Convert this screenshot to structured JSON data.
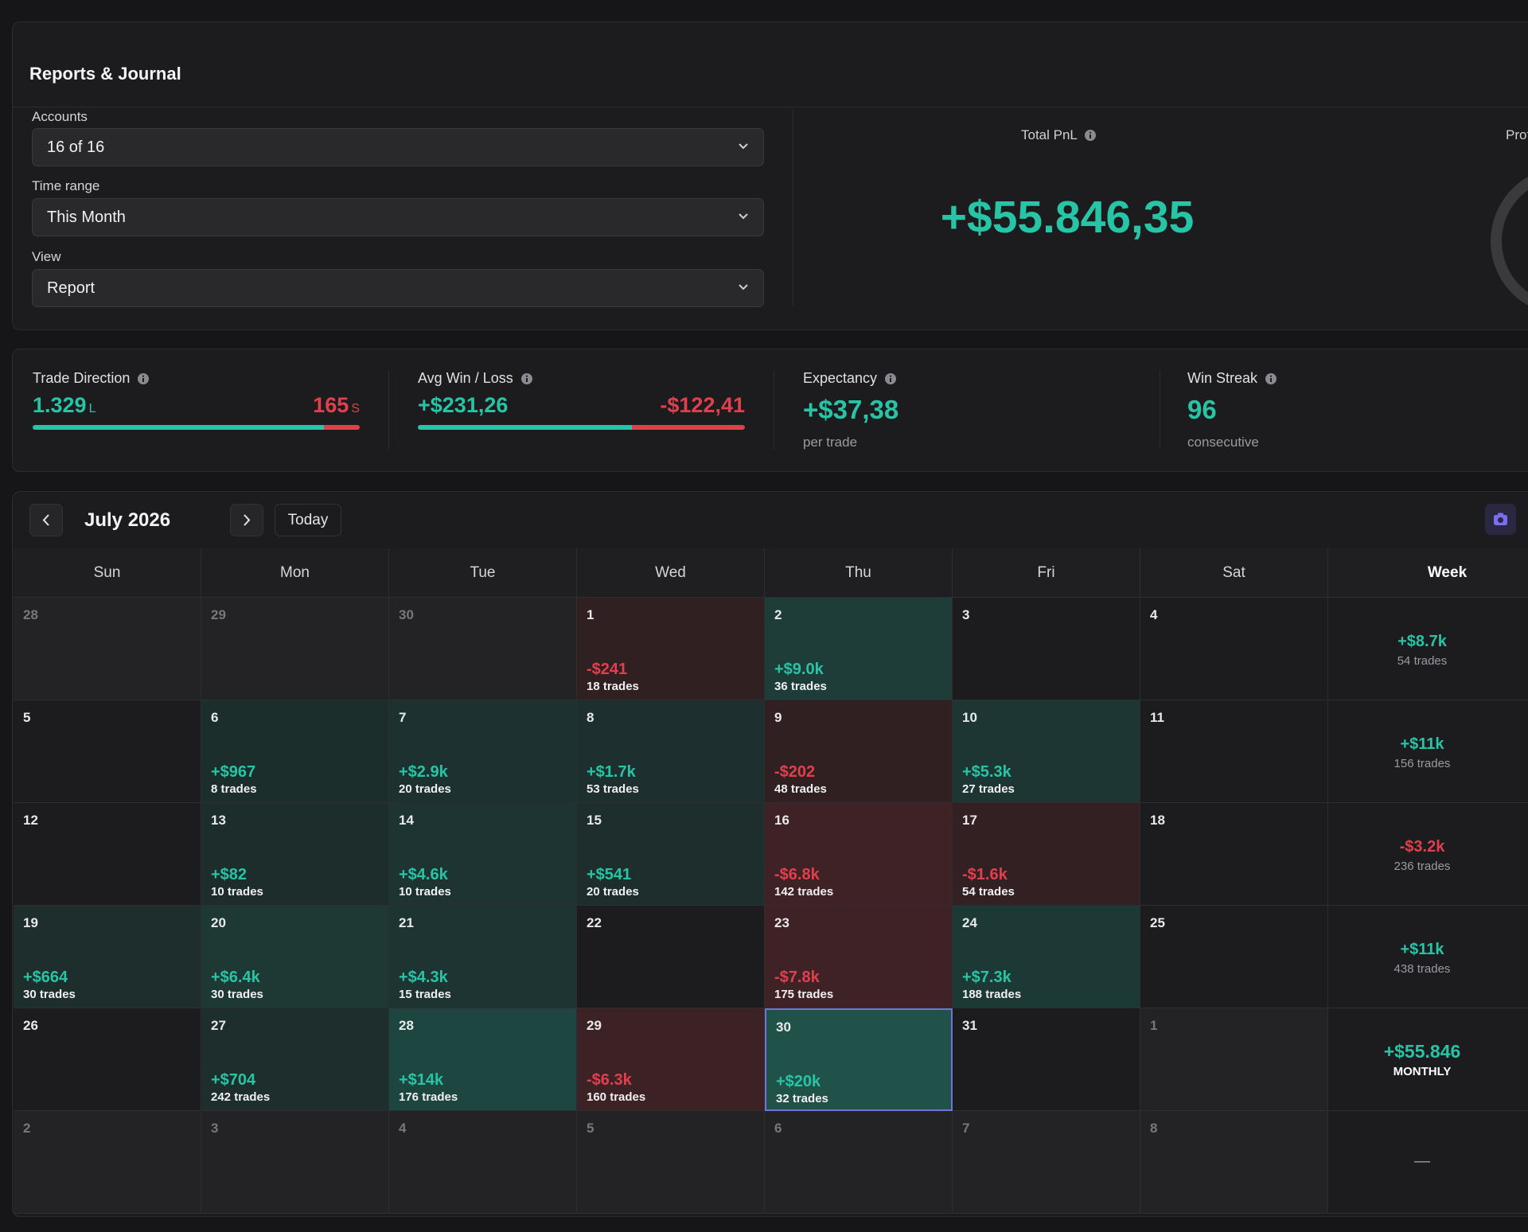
{
  "header": {
    "title": "Reports & Journal"
  },
  "filters": [
    {
      "label": "Accounts",
      "value": "16 of 16"
    },
    {
      "label": "Time range",
      "value": "This Month"
    },
    {
      "label": "View",
      "value": "Report"
    }
  ],
  "total_pnl": {
    "label": "Total PnL",
    "value": "+$55.846,35"
  },
  "profit_label": "Prof",
  "stats": {
    "trade_direction": {
      "label": "Trade Direction",
      "long": "1.329",
      "long_unit": "L",
      "short": "165",
      "short_unit": "S"
    },
    "avg_win_loss": {
      "label": "Avg Win / Loss",
      "win": "+$231,26",
      "loss": "-$122,41"
    },
    "expectancy": {
      "label": "Expectancy",
      "value": "+$37,38",
      "note": "per trade"
    },
    "win_streak": {
      "label": "Win Streak",
      "value": "96",
      "note": "consecutive"
    }
  },
  "calendar": {
    "month": "July 2026",
    "today_button": "Today",
    "weekdays": [
      "Sun",
      "Mon",
      "Tue",
      "Wed",
      "Thu",
      "Fri",
      "Sat",
      "Week"
    ],
    "weeks": [
      {
        "days": [
          {
            "day": "28"
          },
          {
            "day": "29"
          },
          {
            "day": "30"
          },
          {
            "day": "1",
            "pnl": "-$241",
            "trades": "18 trades"
          },
          {
            "day": "2",
            "pnl": "+$9.0k",
            "trades": "36 trades"
          },
          {
            "day": "3"
          },
          {
            "day": "4"
          }
        ],
        "summary": {
          "pnl": "+$8.7k",
          "trades": "54 trades"
        }
      },
      {
        "days": [
          {
            "day": "5"
          },
          {
            "day": "6",
            "pnl": "+$967",
            "trades": "8 trades"
          },
          {
            "day": "7",
            "pnl": "+$2.9k",
            "trades": "20 trades"
          },
          {
            "day": "8",
            "pnl": "+$1.7k",
            "trades": "53 trades"
          },
          {
            "day": "9",
            "pnl": "-$202",
            "trades": "48 trades"
          },
          {
            "day": "10",
            "pnl": "+$5.3k",
            "trades": "27 trades"
          },
          {
            "day": "11"
          }
        ],
        "summary": {
          "pnl": "+$11k",
          "trades": "156 trades"
        }
      },
      {
        "days": [
          {
            "day": "12"
          },
          {
            "day": "13",
            "pnl": "+$82",
            "trades": "10 trades"
          },
          {
            "day": "14",
            "pnl": "+$4.6k",
            "trades": "10 trades"
          },
          {
            "day": "15",
            "pnl": "+$541",
            "trades": "20 trades"
          },
          {
            "day": "16",
            "pnl": "-$6.8k",
            "trades": "142 trades"
          },
          {
            "day": "17",
            "pnl": "-$1.6k",
            "trades": "54 trades"
          },
          {
            "day": "18"
          }
        ],
        "summary": {
          "pnl": "-$3.2k",
          "trades": "236 trades"
        }
      },
      {
        "days": [
          {
            "day": "19",
            "pnl": "+$664",
            "trades": "30 trades"
          },
          {
            "day": "20",
            "pnl": "+$6.4k",
            "trades": "30 trades"
          },
          {
            "day": "21",
            "pnl": "+$4.3k",
            "trades": "15 trades"
          },
          {
            "day": "22"
          },
          {
            "day": "23",
            "pnl": "-$7.8k",
            "trades": "175 trades"
          },
          {
            "day": "24",
            "pnl": "+$7.3k",
            "trades": "188 trades"
          },
          {
            "day": "25"
          }
        ],
        "summary": {
          "pnl": "+$11k",
          "trades": "438 trades"
        }
      },
      {
        "days": [
          {
            "day": "26"
          },
          {
            "day": "27",
            "pnl": "+$704",
            "trades": "242 trades"
          },
          {
            "day": "28",
            "pnl": "+$14k",
            "trades": "176 trades"
          },
          {
            "day": "29",
            "pnl": "-$6.3k",
            "trades": "160 trades"
          },
          {
            "day": "30",
            "pnl": "+$20k",
            "trades": "32 trades"
          },
          {
            "day": "31"
          },
          {
            "day": "1"
          }
        ],
        "summary": {
          "pnl": "+$55.846",
          "trades": "MONTHLY"
        }
      },
      {
        "days": [
          {
            "day": "2"
          },
          {
            "day": "3"
          },
          {
            "day": "4"
          },
          {
            "day": "5"
          },
          {
            "day": "6"
          },
          {
            "day": "7"
          },
          {
            "day": "8"
          }
        ],
        "summary": {
          "pnl": "—"
        }
      }
    ]
  }
}
